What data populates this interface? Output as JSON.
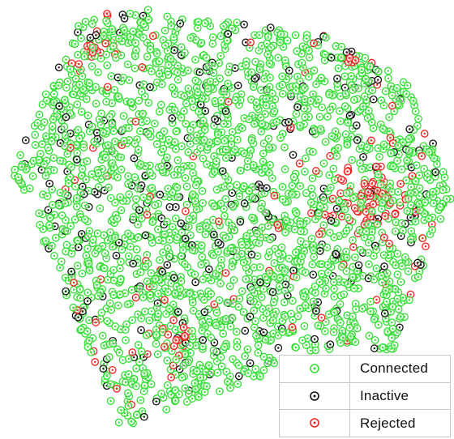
{
  "chart_data": {
    "type": "scatter",
    "title": "",
    "xlabel": "",
    "ylabel": "",
    "grid": false,
    "legend_placement": "bottom-right",
    "series": [
      {
        "name": "Connected",
        "color": "#33dd33",
        "marker": "ring-dot",
        "approx_count": 2100
      },
      {
        "name": "Inactive",
        "color": "#111111",
        "marker": "ring-dot",
        "approx_count": 260
      },
      {
        "name": "Rejected",
        "color": "#ee2222",
        "marker": "ring-dot",
        "approx_count": 190
      }
    ],
    "region": {
      "shape": "irregular-pentagon",
      "vertices": [
        [
          155,
          8
        ],
        [
          395,
          40
        ],
        [
          510,
          105
        ],
        [
          558,
          245
        ],
        [
          530,
          310
        ],
        [
          485,
          435
        ],
        [
          335,
          460
        ],
        [
          150,
          530
        ],
        [
          15,
          210
        ],
        [
          95,
          30
        ]
      ]
    },
    "clusters": [
      {
        "series": "Rejected",
        "center": [
          460,
          250
        ],
        "spread": [
          55,
          40
        ],
        "count": 70
      },
      {
        "series": "Rejected",
        "center": [
          118,
          60
        ],
        "spread": [
          18,
          14
        ],
        "count": 14
      },
      {
        "series": "Rejected",
        "center": [
          440,
          70
        ],
        "spread": [
          25,
          12
        ],
        "count": 10
      },
      {
        "series": "Rejected",
        "center": [
          215,
          415
        ],
        "spread": [
          22,
          22
        ],
        "count": 14
      }
    ]
  }
}
